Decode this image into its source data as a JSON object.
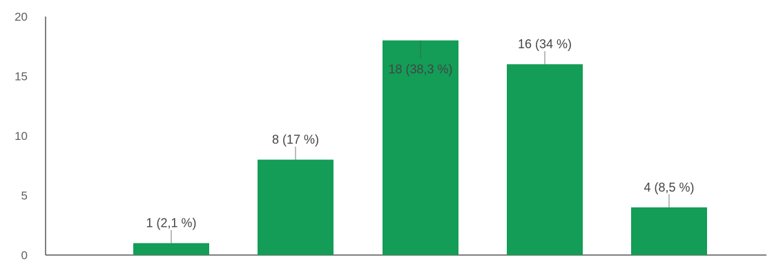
{
  "chart_data": {
    "type": "bar",
    "categories": [
      "",
      "",
      "",
      "",
      ""
    ],
    "values": [
      1,
      8,
      18,
      16,
      4
    ],
    "data_labels": [
      "1 (2,1 %)",
      "8 (17 %)",
      "18 (38,3 %)",
      "16 (34 %)",
      "4 (8,5 %)"
    ],
    "y_ticks": [
      0,
      5,
      10,
      15,
      20
    ],
    "ylim": [
      0,
      20
    ],
    "title": "",
    "xlabel": "",
    "ylabel": "",
    "grid": false,
    "colors": {
      "bar": "#139d57",
      "axis": "#555555",
      "leader": "#777777",
      "tick_text": "#5f5f5f",
      "label_text": "#444444"
    }
  }
}
